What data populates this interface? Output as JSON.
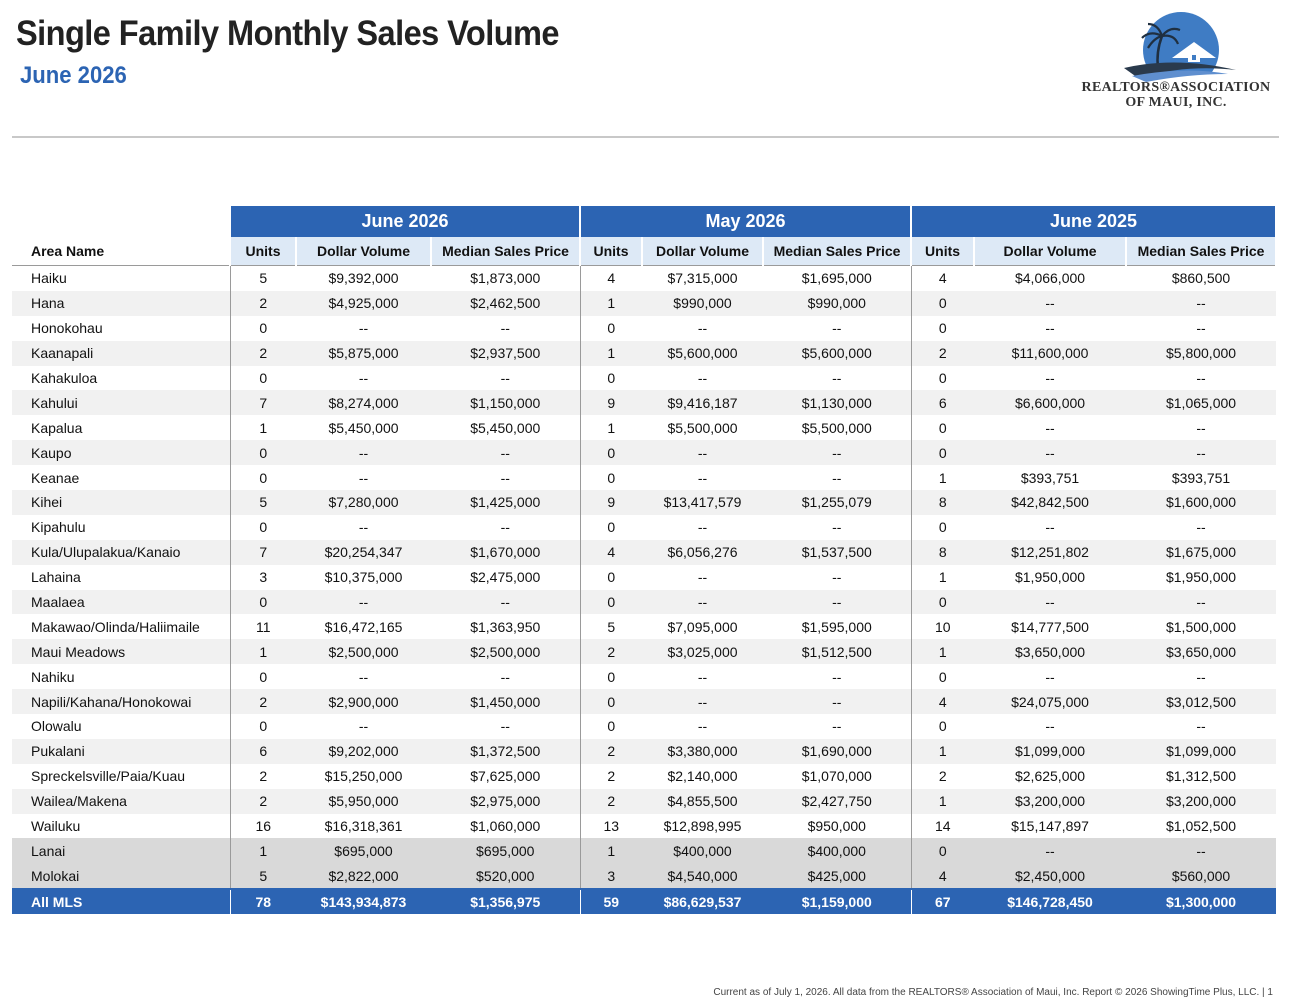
{
  "header": {
    "title": "Single Family Monthly Sales Volume",
    "subtitle": "June 2026"
  },
  "logo": {
    "line1": "REALTORS®ASSOCIATION",
    "line2": "OF MAUI, INC.",
    "colors": {
      "sky": "#3f7cc4",
      "wave": "#2a3a4c",
      "accent": "#5f8fcf"
    }
  },
  "table": {
    "groups": [
      "June 2026",
      "May 2026",
      "June 2025"
    ],
    "area_header": "Area Name",
    "sub_headers": [
      "Units",
      "Dollar Volume",
      "Median Sales Price"
    ],
    "rows": [
      {
        "area": "Haiku",
        "v": [
          "5",
          "$9,392,000",
          "$1,873,000",
          "4",
          "$7,315,000",
          "$1,695,000",
          "4",
          "$4,066,000",
          "$860,500"
        ]
      },
      {
        "area": "Hana",
        "v": [
          "2",
          "$4,925,000",
          "$2,462,500",
          "1",
          "$990,000",
          "$990,000",
          "0",
          "--",
          "--"
        ]
      },
      {
        "area": "Honokohau",
        "v": [
          "0",
          "--",
          "--",
          "0",
          "--",
          "--",
          "0",
          "--",
          "--"
        ]
      },
      {
        "area": "Kaanapali",
        "v": [
          "2",
          "$5,875,000",
          "$2,937,500",
          "1",
          "$5,600,000",
          "$5,600,000",
          "2",
          "$11,600,000",
          "$5,800,000"
        ]
      },
      {
        "area": "Kahakuloa",
        "v": [
          "0",
          "--",
          "--",
          "0",
          "--",
          "--",
          "0",
          "--",
          "--"
        ]
      },
      {
        "area": "Kahului",
        "v": [
          "7",
          "$8,274,000",
          "$1,150,000",
          "9",
          "$9,416,187",
          "$1,130,000",
          "6",
          "$6,600,000",
          "$1,065,000"
        ]
      },
      {
        "area": "Kapalua",
        "v": [
          "1",
          "$5,450,000",
          "$5,450,000",
          "1",
          "$5,500,000",
          "$5,500,000",
          "0",
          "--",
          "--"
        ]
      },
      {
        "area": "Kaupo",
        "v": [
          "0",
          "--",
          "--",
          "0",
          "--",
          "--",
          "0",
          "--",
          "--"
        ]
      },
      {
        "area": "Keanae",
        "v": [
          "0",
          "--",
          "--",
          "0",
          "--",
          "--",
          "1",
          "$393,751",
          "$393,751"
        ]
      },
      {
        "area": "Kihei",
        "v": [
          "5",
          "$7,280,000",
          "$1,425,000",
          "9",
          "$13,417,579",
          "$1,255,079",
          "8",
          "$42,842,500",
          "$1,600,000"
        ]
      },
      {
        "area": "Kipahulu",
        "v": [
          "0",
          "--",
          "--",
          "0",
          "--",
          "--",
          "0",
          "--",
          "--"
        ]
      },
      {
        "area": "Kula/Ulupalakua/Kanaio",
        "v": [
          "7",
          "$20,254,347",
          "$1,670,000",
          "4",
          "$6,056,276",
          "$1,537,500",
          "8",
          "$12,251,802",
          "$1,675,000"
        ]
      },
      {
        "area": "Lahaina",
        "v": [
          "3",
          "$10,375,000",
          "$2,475,000",
          "0",
          "--",
          "--",
          "1",
          "$1,950,000",
          "$1,950,000"
        ]
      },
      {
        "area": "Maalaea",
        "v": [
          "0",
          "--",
          "--",
          "0",
          "--",
          "--",
          "0",
          "--",
          "--"
        ]
      },
      {
        "area": "Makawao/Olinda/Haliimaile",
        "v": [
          "11",
          "$16,472,165",
          "$1,363,950",
          "5",
          "$7,095,000",
          "$1,595,000",
          "10",
          "$14,777,500",
          "$1,500,000"
        ]
      },
      {
        "area": "Maui Meadows",
        "v": [
          "1",
          "$2,500,000",
          "$2,500,000",
          "2",
          "$3,025,000",
          "$1,512,500",
          "1",
          "$3,650,000",
          "$3,650,000"
        ]
      },
      {
        "area": "Nahiku",
        "v": [
          "0",
          "--",
          "--",
          "0",
          "--",
          "--",
          "0",
          "--",
          "--"
        ]
      },
      {
        "area": "Napili/Kahana/Honokowai",
        "v": [
          "2",
          "$2,900,000",
          "$1,450,000",
          "0",
          "--",
          "--",
          "4",
          "$24,075,000",
          "$3,012,500"
        ]
      },
      {
        "area": "Olowalu",
        "v": [
          "0",
          "--",
          "--",
          "0",
          "--",
          "--",
          "0",
          "--",
          "--"
        ]
      },
      {
        "area": "Pukalani",
        "v": [
          "6",
          "$9,202,000",
          "$1,372,500",
          "2",
          "$3,380,000",
          "$1,690,000",
          "1",
          "$1,099,000",
          "$1,099,000"
        ]
      },
      {
        "area": "Spreckelsville/Paia/Kuau",
        "v": [
          "2",
          "$15,250,000",
          "$7,625,000",
          "2",
          "$2,140,000",
          "$1,070,000",
          "2",
          "$2,625,000",
          "$1,312,500"
        ]
      },
      {
        "area": "Wailea/Makena",
        "v": [
          "2",
          "$5,950,000",
          "$2,975,000",
          "2",
          "$4,855,500",
          "$2,427,750",
          "1",
          "$3,200,000",
          "$3,200,000"
        ]
      },
      {
        "area": "Wailuku",
        "v": [
          "16",
          "$16,318,361",
          "$1,060,000",
          "13",
          "$12,898,995",
          "$950,000",
          "14",
          "$15,147,897",
          "$1,052,500"
        ]
      },
      {
        "area": "Lanai",
        "v": [
          "1",
          "$695,000",
          "$695,000",
          "1",
          "$400,000",
          "$400,000",
          "0",
          "--",
          "--"
        ],
        "style": "grey"
      },
      {
        "area": "Molokai",
        "v": [
          "5",
          "$2,822,000",
          "$520,000",
          "3",
          "$4,540,000",
          "$425,000",
          "4",
          "$2,450,000",
          "$560,000"
        ],
        "style": "grey"
      }
    ],
    "total": {
      "area": "All MLS",
      "v": [
        "78",
        "$143,934,873",
        "$1,356,975",
        "59",
        "$86,629,537",
        "$1,159,000",
        "67",
        "$146,728,450",
        "$1,300,000"
      ]
    }
  },
  "footer": {
    "text": "Current as of July 1, 2026. All data from the REALTORS® Association of Maui, Inc. Report © 2026 ShowingTime Plus, LLC.  |  1"
  },
  "colors": {
    "brand_blue": "#2c64b3",
    "subheader_bg": "#dde9f6",
    "alt_row": "#f1f1f1",
    "grey_row": "#d9d9d9"
  }
}
